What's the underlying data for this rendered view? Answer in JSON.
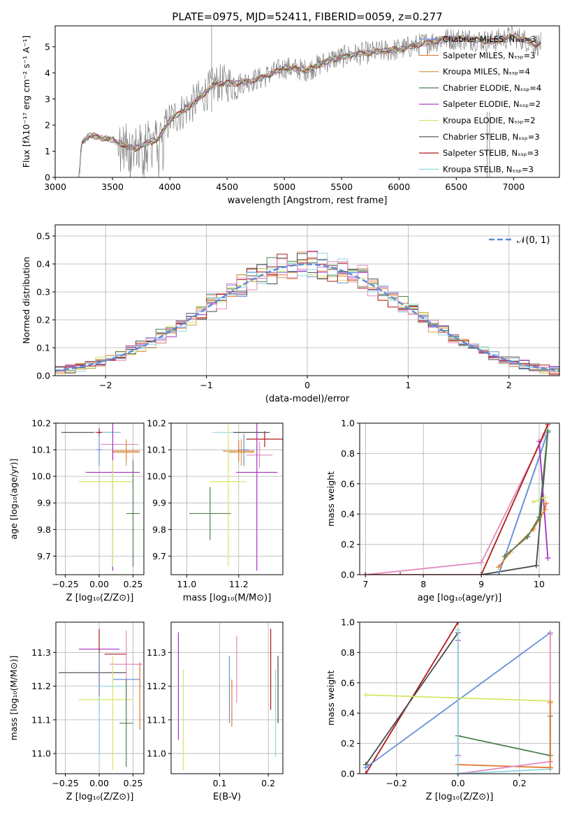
{
  "colors": {
    "chabrier_miles": "#6a8fd8",
    "salpeter_miles": "#e0782f",
    "kroupa_miles": "#d4a050",
    "chabrier_elodie": "#4f7f4f",
    "salpeter_elodie": "#a62fc2",
    "kroupa_elodie": "#d6e66a",
    "chabrier_stelib": "#4a4a4a",
    "salpeter_stelib": "#b01818",
    "kroupa_stelib": "#8fd8e0",
    "pink": "#e08ac0",
    "gaussian": "#5b8bd8",
    "data": "#808080"
  },
  "chart_data": [
    {
      "type": "line",
      "title": "PLATE=0975, MJD=52411, FIBERID=0059, z=0.277",
      "xlabel": "wavelength [Angstrom, rest frame]",
      "ylabel": "Flux [fλ10⁻¹⁷ erg cm⁻² s⁻¹ A⁻¹]",
      "xlim": [
        3000,
        7400
      ],
      "ylim": [
        0,
        5.8
      ],
      "xticks": [
        "3000",
        "3500",
        "4000",
        "4500",
        "5000",
        "5500",
        "6000",
        "6500",
        "7000"
      ],
      "yticks": [
        "0",
        "1",
        "2",
        "3",
        "4",
        "5"
      ],
      "legend": "top-right",
      "series": [
        {
          "name": "Chabrier MILES, Nₛₛₚ=3",
          "color": "chabrier_miles"
        },
        {
          "name": "Salpeter MILES, Nₛₛₚ=3",
          "color": "salpeter_miles"
        },
        {
          "name": "Kroupa MILES, Nₛₛₚ=4",
          "color": "kroupa_miles"
        },
        {
          "name": "Chabrier ELODIE, Nₛₛₚ=4",
          "color": "chabrier_elodie"
        },
        {
          "name": "Salpeter ELODIE, Nₛₛₚ=2",
          "color": "salpeter_elodie"
        },
        {
          "name": "Kroupa ELODIE, Nₛₛₚ=2",
          "color": "kroupa_elodie"
        },
        {
          "name": "Chabrier STELIB, Nₛₛₚ=3",
          "color": "chabrier_stelib"
        },
        {
          "name": "Salpeter STELIB, Nₛₛₚ=3",
          "color": "salpeter_stelib"
        },
        {
          "name": "Kroupa STELIB, Nₛₛₚ=3",
          "color": "kroupa_stelib"
        }
      ],
      "model_shape": {
        "x": [
          3210,
          3230,
          3300,
          3500,
          3600,
          3700,
          3800,
          3900,
          4000,
          4200,
          4400,
          4600,
          4800,
          5000,
          5200,
          5400,
          5600,
          5800,
          6000,
          6200,
          6400,
          6600,
          6800,
          7000,
          7200
        ],
        "y": [
          0,
          1.3,
          1.6,
          1.45,
          1.2,
          1.1,
          1.3,
          1.45,
          2.2,
          2.8,
          3.6,
          3.6,
          3.8,
          4.2,
          4.1,
          4.5,
          4.7,
          4.8,
          4.9,
          5.1,
          5.3,
          5.3,
          5.2,
          5.4,
          5.1
        ]
      }
    },
    {
      "type": "histogram",
      "xlabel": "(data-model)/error",
      "ylabel": "Normed distribution",
      "xlim": [
        -2.5,
        2.5
      ],
      "ylim": [
        0,
        0.54
      ],
      "xticks": [
        "−2",
        "−1",
        "0",
        "1",
        "2"
      ],
      "yticks": [
        "0.0",
        "0.1",
        "0.2",
        "0.3",
        "0.4",
        "0.5"
      ],
      "gaussian_label": "𝒩(0, 1)",
      "legend": "top-right"
    },
    {
      "type": "scatter",
      "xlabel": "Z [log₁₀(Z/Z⊙)]",
      "ylabel": "age  [log₁₀(age/yr)]",
      "xlim": [
        -0.32,
        0.33
      ],
      "ylim": [
        9.63,
        10.2
      ],
      "xticks": [
        "−0.25",
        "0.00",
        "0.25"
      ],
      "yticks": [
        "9.7",
        "9.8",
        "9.9",
        "10.0",
        "10.1",
        "10.2"
      ],
      "points": [
        {
          "c": "chabrier_stelib",
          "x": -0.06,
          "xe": 0.22,
          "y": 10.165,
          "ye": 0.0
        },
        {
          "c": "kroupa_stelib",
          "x": 0.06,
          "xe": 0.1,
          "y": 10.165,
          "ye": 0.0
        },
        {
          "c": "salpeter_stelib",
          "x": 0.0,
          "xe": 0.02,
          "y": 10.165,
          "ye": 0.015
        },
        {
          "c": "chabrier_miles",
          "x": 0.0,
          "xe": 0.02,
          "y": 10.1,
          "ye": 0.06
        },
        {
          "c": "pink",
          "x": 0.15,
          "xe": 0.14,
          "y": 10.12,
          "ye": 0.0
        },
        {
          "c": "salpeter_miles",
          "x": 0.2,
          "xe": 0.1,
          "y": 10.095,
          "ye": 0.04
        },
        {
          "c": "kroupa_miles",
          "x": 0.2,
          "xe": 0.1,
          "y": 10.09,
          "ye": 0.05
        },
        {
          "c": "salpeter_elodie",
          "x": 0.1,
          "xe": 0.2,
          "y": 10.015,
          "ye": 0.37
        },
        {
          "c": "kroupa_elodie",
          "x": 0.05,
          "xe": 0.2,
          "y": 9.98,
          "ye": 0.0
        },
        {
          "c": "chabrier_elodie",
          "x": 0.25,
          "xe": 0.05,
          "y": 9.86,
          "ye": 0.2
        },
        {
          "c": "kroupa_elodie",
          "x": 0.1,
          "xe": 0.0,
          "y": 9.86,
          "ye": 0.2
        }
      ]
    },
    {
      "type": "scatter",
      "xlabel": "mass [log₁₀(M/M⊙)]",
      "xlim": [
        10.94,
        11.37
      ],
      "ylim": [
        9.63,
        10.2
      ],
      "xticks": [
        "11.0",
        "11.2"
      ],
      "yticks": [
        "9.7",
        "9.8",
        "9.9",
        "10.0",
        "10.1",
        "10.2"
      ],
      "points": [
        {
          "c": "kroupa_stelib",
          "x": 11.2,
          "xe": 0.1,
          "y": 10.165,
          "ye": 0.0
        },
        {
          "c": "chabrier_stelib",
          "x": 11.25,
          "xe": 0.07,
          "y": 10.165,
          "ye": 0.0
        },
        {
          "c": "salpeter_stelib",
          "x": 11.3,
          "xe": 0.07,
          "y": 10.14,
          "ye": 0.03
        },
        {
          "c": "chabrier_miles",
          "x": 11.22,
          "xe": 0.02,
          "y": 10.1,
          "ye": 0.06
        },
        {
          "c": "pink",
          "x": 11.28,
          "xe": 0.05,
          "y": 10.08,
          "ye": 0.05
        },
        {
          "c": "salpeter_miles",
          "x": 11.2,
          "xe": 0.06,
          "y": 10.095,
          "ye": 0.04
        },
        {
          "c": "kroupa_miles",
          "x": 11.21,
          "xe": 0.05,
          "y": 10.09,
          "ye": 0.05
        },
        {
          "c": "salpeter_elodie",
          "x": 11.27,
          "xe": 0.08,
          "y": 10.015,
          "ye": 0.37
        },
        {
          "c": "kroupa_elodie",
          "x": 11.16,
          "xe": 0.07,
          "y": 9.98,
          "ye": 0.32
        },
        {
          "c": "chabrier_elodie",
          "x": 11.09,
          "xe": 0.08,
          "y": 9.86,
          "ye": 0.1
        }
      ]
    },
    {
      "type": "line",
      "xlabel": "age  [log₁₀(age/yr)]",
      "ylabel": "mass weight",
      "xlim": [
        6.9,
        10.35
      ],
      "ylim": [
        0,
        1
      ],
      "xticks": [
        "7",
        "8",
        "9",
        "10"
      ],
      "yticks": [
        "0.0",
        "0.2",
        "0.4",
        "0.6",
        "0.8",
        "1.0"
      ],
      "lines": [
        {
          "c": "pink",
          "x": [
            7.0,
            9.0,
            10.1
          ],
          "y": [
            0.0,
            0.08,
            0.93
          ]
        },
        {
          "c": "salpeter_stelib",
          "x": [
            7.0,
            7.6,
            9.0,
            10.15
          ],
          "y": [
            0.0,
            0.0,
            0.0,
            0.99
          ]
        },
        {
          "c": "kroupa_stelib",
          "x": [
            9.0,
            9.3,
            10.15
          ],
          "y": [
            0.0,
            0.0,
            0.95
          ]
        },
        {
          "c": "chabrier_stelib",
          "x": [
            9.0,
            9.95,
            10.15
          ],
          "y": [
            0.0,
            0.06,
            0.94
          ]
        },
        {
          "c": "chabrier_miles",
          "x": [
            9.3,
            10.15
          ],
          "y": [
            0.0,
            0.94
          ]
        },
        {
          "c": "salpeter_elodie",
          "x": [
            10.0,
            10.15
          ],
          "y": [
            0.88,
            0.11
          ]
        },
        {
          "c": "kroupa_elodie",
          "x": [
            9.9,
            10.1
          ],
          "y": [
            0.48,
            0.51
          ]
        },
        {
          "c": "salpeter_miles",
          "x": [
            9.3,
            9.5,
            9.9,
            10.1,
            10.12
          ],
          "y": [
            0.05,
            0.15,
            0.3,
            0.43,
            0.47
          ]
        },
        {
          "c": "chabrier_elodie",
          "x": [
            9.4,
            9.8,
            10.0,
            10.15
          ],
          "y": [
            0.12,
            0.25,
            0.38,
            0.95
          ]
        }
      ]
    },
    {
      "type": "scatter",
      "xlabel": "Z [log₁₀(Z/Z⊙)]",
      "ylabel": "mass [log₁₀(M/M⊙)]",
      "xlim": [
        -0.32,
        0.33
      ],
      "ylim": [
        10.94,
        11.39
      ],
      "xticks": [
        "−0.25",
        "0.00",
        "0.25"
      ],
      "yticks": [
        "11.0",
        "11.1",
        "11.2",
        "11.3"
      ],
      "points": [
        {
          "c": "salpeter_elodie",
          "x": 0.0,
          "xe": 0.15,
          "y": 11.31,
          "ye": 0.0
        },
        {
          "c": "salpeter_stelib",
          "x": 0.0,
          "xe": 0.0,
          "y": 11.27,
          "ye": 0.1
        },
        {
          "c": "salpeter_stelib",
          "x": 0.12,
          "xe": 0.08,
          "y": 11.295,
          "ye": 0.0
        },
        {
          "c": "pink",
          "x": 0.2,
          "xe": 0.12,
          "y": 11.265,
          "ye": 0.1
        },
        {
          "c": "chabrier_stelib",
          "x": -0.05,
          "xe": 0.25,
          "y": 11.24,
          "ye": 0.0
        },
        {
          "c": "chabrier_miles",
          "x": 0.2,
          "xe": 0.1,
          "y": 11.22,
          "ye": 0.0
        },
        {
          "c": "chabrier_miles",
          "x": 0.0,
          "xe": 0.0,
          "y": 11.15,
          "ye": 0.15
        },
        {
          "c": "kroupa_stelib",
          "x": 0.1,
          "xe": 0.1,
          "y": 11.2,
          "ye": 0.0
        },
        {
          "c": "salpeter_miles",
          "x": 0.3,
          "xe": 0.0,
          "y": 11.17,
          "ye": 0.1
        },
        {
          "c": "kroupa_elodie",
          "x": 0.05,
          "xe": 0.2,
          "y": 11.16,
          "ye": 0.0
        },
        {
          "c": "kroupa_elodie",
          "x": 0.1,
          "xe": 0.0,
          "y": 11.12,
          "ye": 0.17
        },
        {
          "c": "chabrier_elodie",
          "x": 0.2,
          "xe": 0.05,
          "y": 11.09,
          "ye": 0.13
        },
        {
          "c": "kroupa_stelib",
          "x": 0.0,
          "xe": 0.0,
          "y": 11.07,
          "ye": 0.1
        }
      ]
    },
    {
      "type": "scatter",
      "xlabel": "E(B-V)",
      "xlim": [
        0.0,
        0.23
      ],
      "ylim": [
        10.94,
        11.39
      ],
      "xticks": [
        "0.1",
        "0.2"
      ],
      "yticks": [
        "11.0",
        "11.1",
        "11.2",
        "11.3"
      ],
      "points": [
        {
          "c": "salpeter_elodie",
          "x": 0.015,
          "xe": 0.0,
          "y": 11.2,
          "ye": 0.16
        },
        {
          "c": "kroupa_elodie",
          "x": 0.025,
          "xe": 0.0,
          "y": 11.1,
          "ye": 0.15
        },
        {
          "c": "chabrier_miles",
          "x": 0.12,
          "xe": 0.0,
          "y": 11.19,
          "ye": 0.1
        },
        {
          "c": "salpeter_miles",
          "x": 0.125,
          "xe": 0.0,
          "y": 11.15,
          "ye": 0.07
        },
        {
          "c": "pink",
          "x": 0.135,
          "xe": 0.0,
          "y": 11.25,
          "ye": 0.1
        },
        {
          "c": "salpeter_stelib",
          "x": 0.205,
          "xe": 0.0,
          "y": 11.25,
          "ye": 0.12
        },
        {
          "c": "kroupa_stelib",
          "x": 0.215,
          "xe": 0.0,
          "y": 11.12,
          "ye": 0.13
        },
        {
          "c": "chabrier_stelib",
          "x": 0.22,
          "xe": 0.0,
          "y": 11.19,
          "ye": 0.1
        }
      ]
    },
    {
      "type": "line",
      "xlabel": "Z [log₁₀(Z/Z⊙)]",
      "ylabel": "mass weight",
      "xlim": [
        -0.32,
        0.33
      ],
      "ylim": [
        0,
        1
      ],
      "xticks": [
        "−0.2",
        "0.0",
        "0.2"
      ],
      "yticks": [
        "0.0",
        "0.2",
        "0.4",
        "0.6",
        "0.8",
        "1.0"
      ],
      "lines": [
        {
          "c": "salpeter_stelib",
          "x": [
            -0.3,
            0.0
          ],
          "y": [
            0.0,
            1.0
          ]
        },
        {
          "c": "chabrier_stelib",
          "x": [
            -0.3,
            0.0
          ],
          "y": [
            0.06,
            0.93
          ]
        },
        {
          "c": "chabrier_miles",
          "x": [
            -0.3,
            0.3
          ],
          "y": [
            0.04,
            0.93
          ]
        },
        {
          "c": "kroupa_elodie",
          "x": [
            -0.3,
            0.3
          ],
          "y": [
            0.52,
            0.48
          ]
        },
        {
          "c": "chabrier_elodie",
          "x": [
            0.0,
            0.3
          ],
          "y": [
            0.25,
            0.12
          ]
        },
        {
          "c": "salpeter_miles",
          "x": [
            0.0,
            0.3
          ],
          "y": [
            0.06,
            0.04
          ]
        },
        {
          "c": "pink",
          "x": [
            0.0,
            0.3
          ],
          "y": [
            0.0,
            0.08
          ]
        },
        {
          "c": "kroupa_stelib",
          "x": [
            0.0,
            0.3
          ],
          "y": [
            0.0,
            0.03
          ]
        },
        {
          "c": "salpeter_elodie",
          "x": [
            0.0,
            0.0
          ],
          "y": [
            0.12,
            0.88
          ]
        },
        {
          "c": "kroupa_stelib",
          "x": [
            0.0,
            0.0
          ],
          "y": [
            0.0,
            0.95
          ]
        },
        {
          "c": "pink",
          "x": [
            0.3,
            0.3
          ],
          "y": [
            0.08,
            0.92
          ]
        },
        {
          "c": "chabrier_elodie",
          "x": [
            0.3,
            0.3
          ],
          "y": [
            0.12,
            0.38
          ]
        },
        {
          "c": "salpeter_miles",
          "x": [
            0.3,
            0.3
          ],
          "y": [
            0.04,
            0.47
          ]
        }
      ]
    }
  ]
}
